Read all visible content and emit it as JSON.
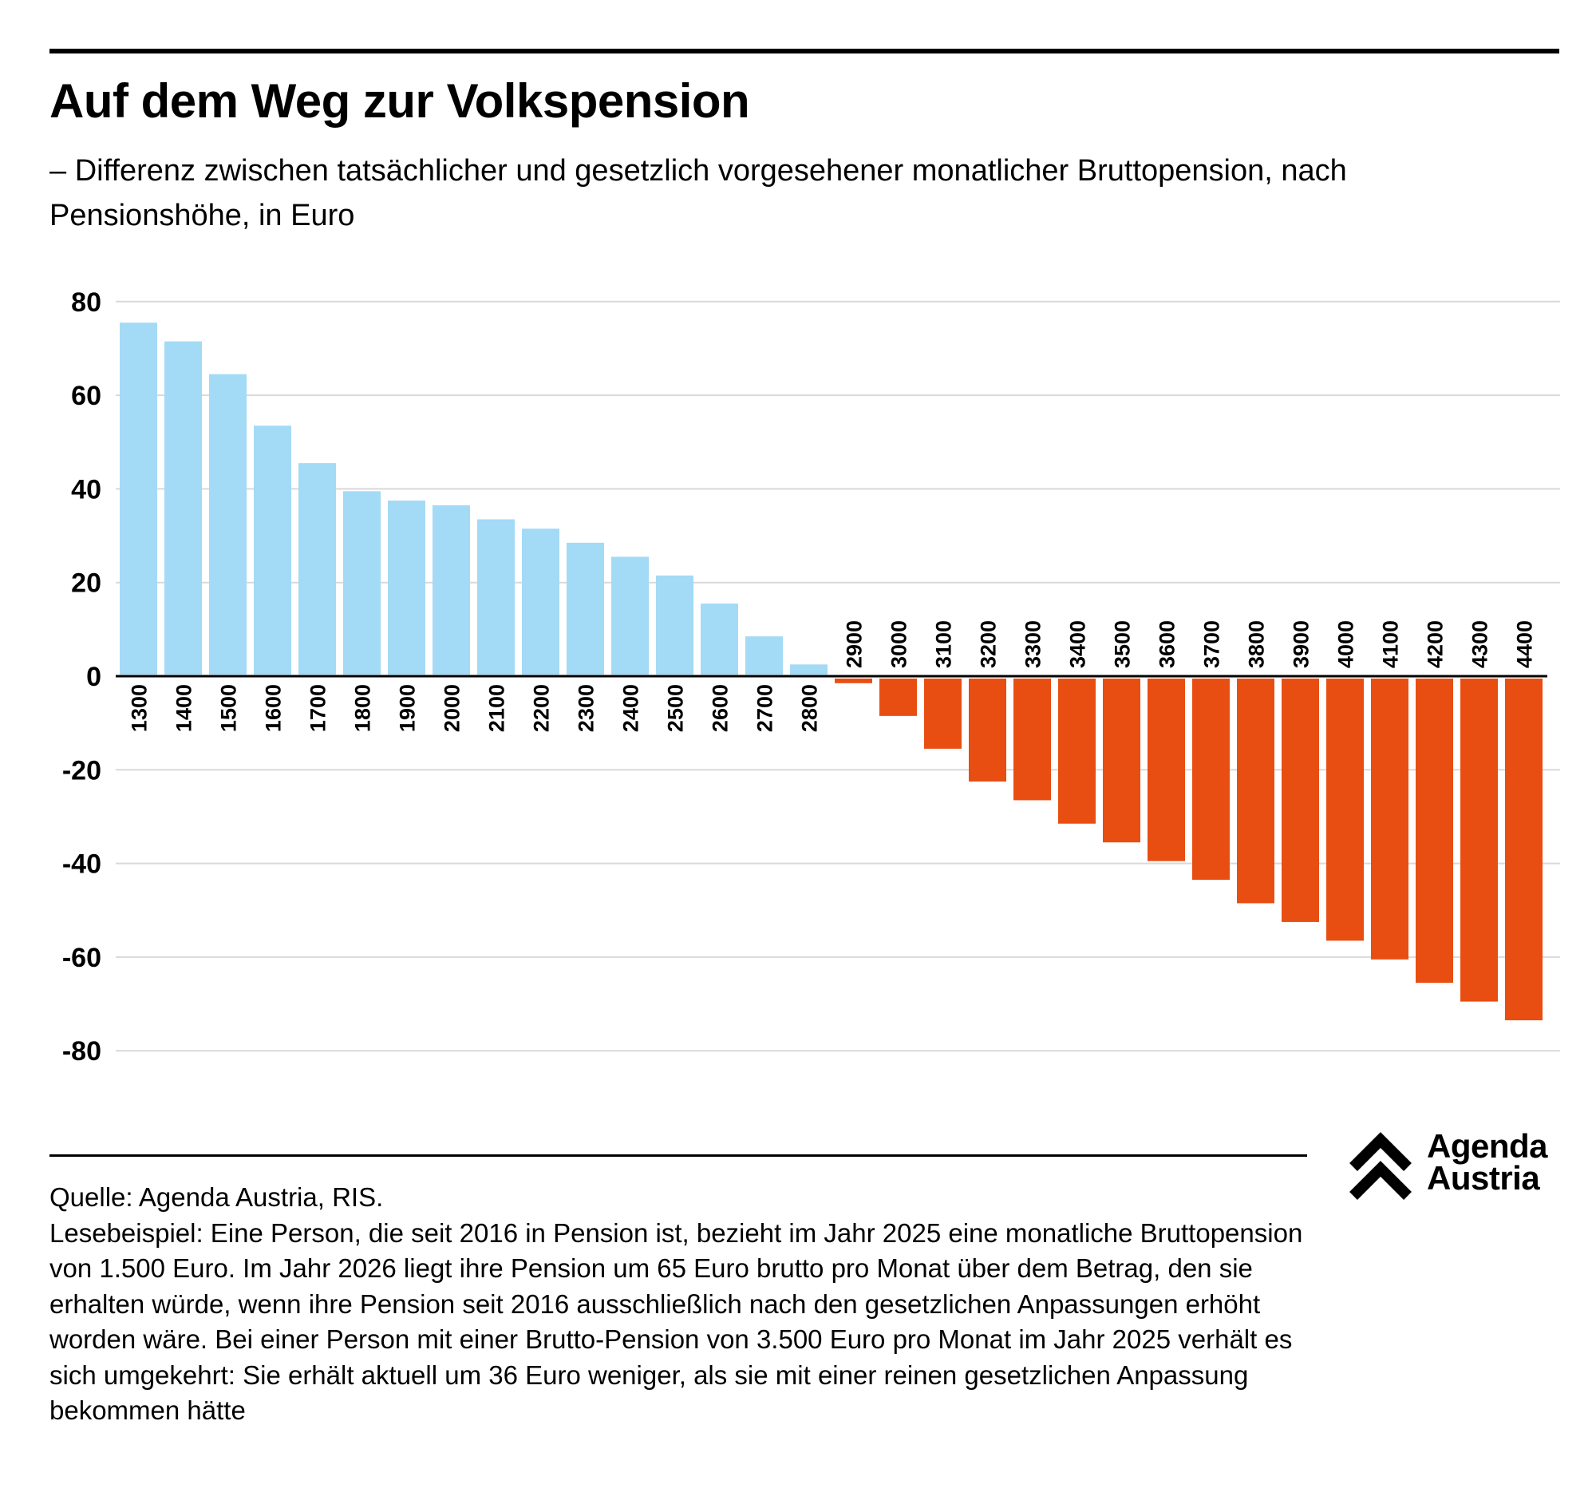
{
  "header": {
    "title": "Auf dem Weg zur Volkspension",
    "subtitle": "– Differenz zwischen tatsächlicher und gesetzlich vorgesehener monatlicher Bruttopension, nach Pensionshöhe, in Euro"
  },
  "chart_data": {
    "type": "bar",
    "title": "Auf dem Weg zur Volkspension",
    "subtitle": "– Differenz zwischen tatsächlicher und gesetzlich vorgesehener monatlicher Bruttopension, nach Pensionshöhe, in Euro",
    "xlabel": "",
    "ylabel": "",
    "ylim": [
      -80,
      80
    ],
    "yticks": [
      80,
      60,
      40,
      20,
      0,
      -20,
      -40,
      -60,
      -80
    ],
    "grid": true,
    "legend": "none",
    "categories": [
      "1300",
      "1400",
      "1500",
      "1600",
      "1700",
      "1800",
      "1900",
      "2000",
      "2100",
      "2200",
      "2300",
      "2400",
      "2500",
      "2600",
      "2700",
      "2800",
      "2900",
      "3000",
      "3100",
      "3200",
      "3300",
      "3400",
      "3500",
      "3600",
      "3700",
      "3800",
      "3900",
      "4000",
      "4100",
      "4200",
      "4300",
      "4400"
    ],
    "values": [
      75.5,
      71.5,
      64.5,
      53.5,
      45.5,
      39.5,
      37.5,
      36.5,
      33.5,
      31.5,
      28.5,
      25.5,
      21.5,
      15.5,
      8.5,
      2.5,
      -1.5,
      -8.5,
      -15.5,
      -22.5,
      -26.5,
      -31.5,
      -35.5,
      -39.5,
      -43.5,
      -48.5,
      -52.5,
      -56.5,
      -60.5,
      -65.5,
      -69.5,
      -73.5
    ],
    "colors": {
      "positive": "#a3daf6",
      "negative": "#e84e12",
      "grid": "#d9d9d9",
      "axis": "#000000"
    }
  },
  "footer": {
    "source": "Quelle: Agenda Austria, RIS.",
    "note": "Lesebeispiel: Eine Person, die seit 2016 in Pension ist, bezieht im Jahr 2025 eine monatliche Bruttopension von 1.500 Euro. Im Jahr 2026 liegt ihre Pension um 65 Euro brutto pro Monat über dem Betrag, den sie erhalten würde, wenn ihre Pension seit 2016 ausschließlich nach den gesetzlichen Anpassungen erhöht worden wäre. Bei einer Person mit einer Brutto-Pension von 3.500 Euro pro Monat im Jahr 2025 verhält es sich umgekehrt: Sie erhält aktuell um 36 Euro weniger, als sie mit einer reinen gesetzlichen Anpassung bekommen hätte"
  },
  "logo": {
    "icon": "double-chevron-up-icon",
    "line1": "Agenda",
    "line2": "Austria"
  }
}
